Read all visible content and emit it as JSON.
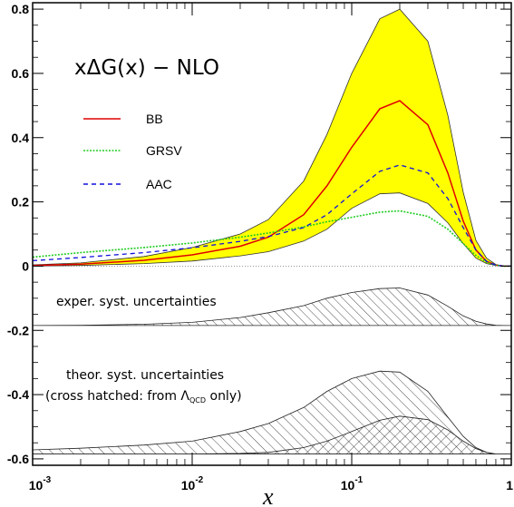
{
  "chart_data": {
    "type": "line",
    "title": "xΔG(x) − NLO",
    "xlabel": "x",
    "ylabel": "",
    "x_scale": "log",
    "xlim": [
      0.001,
      1
    ],
    "ylim": [
      -0.62,
      0.82
    ],
    "grid": false,
    "legend_placement": "upper-left",
    "x_ticks": [
      {
        "value": 0.001,
        "base": "10",
        "exp": "-3"
      },
      {
        "value": 0.01,
        "base": "10",
        "exp": "-2"
      },
      {
        "value": 0.1,
        "base": "10",
        "exp": "-1"
      },
      {
        "value": 1,
        "base": "1",
        "exp": ""
      }
    ],
    "y_ticks": [
      {
        "value": 0.8,
        "label": "0.8"
      },
      {
        "value": 0.6,
        "label": "0.6"
      },
      {
        "value": 0.4,
        "label": "0.4"
      },
      {
        "value": 0.2,
        "label": "0.2"
      },
      {
        "value": 0,
        "label": "0"
      },
      {
        "value": -0.2,
        "label": "-0.2"
      },
      {
        "value": -0.4,
        "label": "-0.4"
      },
      {
        "value": -0.6,
        "label": "-0.6"
      }
    ],
    "x": [
      0.001,
      0.002,
      0.005,
      0.01,
      0.02,
      0.03,
      0.05,
      0.07,
      0.1,
      0.15,
      0.2,
      0.3,
      0.4,
      0.5,
      0.6,
      0.7,
      0.8,
      0.9,
      1.0
    ],
    "series": [
      {
        "name": "BB",
        "color": "#e00000",
        "style": "solid",
        "values": [
          0.002,
          0.006,
          0.018,
          0.035,
          0.062,
          0.09,
          0.16,
          0.25,
          0.37,
          0.49,
          0.515,
          0.44,
          0.29,
          0.14,
          0.05,
          0.015,
          0.003,
          0.0,
          0.0
        ]
      },
      {
        "name": "GRSV",
        "color": "#22cc22",
        "style": "dotted-markers",
        "values": [
          0.028,
          0.042,
          0.058,
          0.072,
          0.09,
          0.103,
          0.122,
          0.138,
          0.152,
          0.168,
          0.172,
          0.155,
          0.115,
          0.07,
          0.033,
          0.012,
          0.003,
          0.0,
          0.0
        ]
      },
      {
        "name": "AAC",
        "color": "#1010dd",
        "style": "dashed",
        "values": [
          0.017,
          0.027,
          0.042,
          0.057,
          0.077,
          0.092,
          0.12,
          0.16,
          0.225,
          0.295,
          0.315,
          0.29,
          0.21,
          0.12,
          0.05,
          0.015,
          0.003,
          0.0,
          0.0
        ]
      }
    ],
    "error_band": {
      "color": "#ffff00",
      "upper": [
        0.004,
        0.01,
        0.03,
        0.058,
        0.1,
        0.145,
        0.265,
        0.41,
        0.6,
        0.77,
        0.8,
        0.7,
        0.47,
        0.23,
        0.08,
        0.025,
        0.005,
        0.0,
        0.0
      ],
      "lower": [
        0.0,
        0.002,
        0.008,
        0.016,
        0.032,
        0.045,
        0.078,
        0.115,
        0.18,
        0.225,
        0.228,
        0.195,
        0.135,
        0.07,
        0.025,
        0.008,
        0.002,
        0.0,
        0.0
      ]
    },
    "exper_syst": {
      "label": "exper. syst. uncertainties",
      "baseline": -0.185,
      "values": [
        -0.185,
        -0.184,
        -0.181,
        -0.175,
        -0.16,
        -0.145,
        -0.123,
        -0.1,
        -0.082,
        -0.07,
        -0.068,
        -0.09,
        -0.125,
        -0.155,
        -0.172,
        -0.18,
        -0.184,
        -0.185,
        -0.185
      ]
    },
    "theor_syst": {
      "label_line1": "theor. syst. uncertainties",
      "label_line2_prefix": "(cross hatched: from Λ",
      "label_line2_sub": "QCD",
      "label_line2_suffix": " only)",
      "baseline": -0.585,
      "total": [
        -0.572,
        -0.567,
        -0.557,
        -0.545,
        -0.515,
        -0.49,
        -0.44,
        -0.39,
        -0.35,
        -0.327,
        -0.33,
        -0.39,
        -0.47,
        -0.53,
        -0.565,
        -0.58,
        -0.585,
        -0.585,
        -0.585
      ],
      "lambda_qcd": [
        -0.585,
        -0.585,
        -0.585,
        -0.585,
        -0.583,
        -0.58,
        -0.565,
        -0.545,
        -0.515,
        -0.48,
        -0.467,
        -0.478,
        -0.51,
        -0.545,
        -0.568,
        -0.58,
        -0.585,
        -0.585,
        -0.585
      ]
    }
  }
}
